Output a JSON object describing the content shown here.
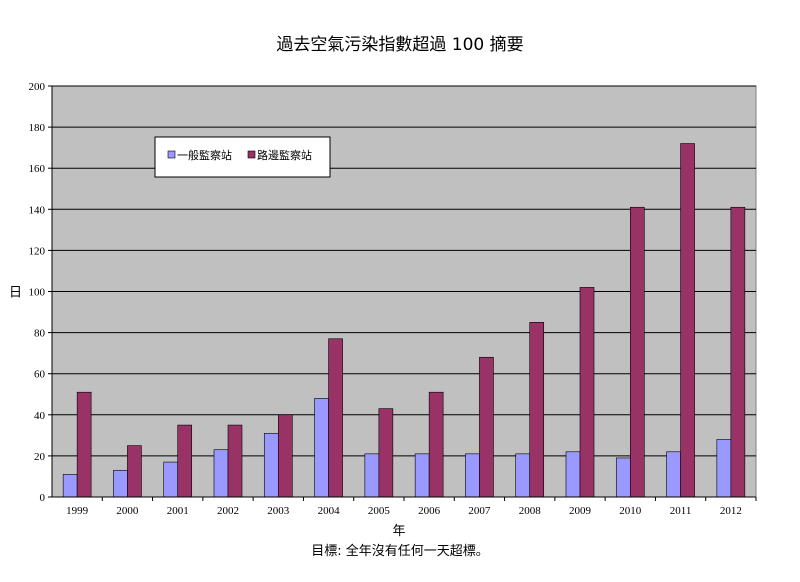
{
  "colors": {
    "plot_bg": "#c0c0c0",
    "general": "#9999ff",
    "roadside": "#993366"
  },
  "chart_data": {
    "type": "bar",
    "title": "過去空氣污染指數超過 100 摘要",
    "xlabel": "年",
    "ylabel": "日",
    "note": "目標: 全年沒有任何一天超標。",
    "ylim": [
      0,
      200
    ],
    "yticks": [
      0,
      20,
      40,
      60,
      80,
      100,
      120,
      140,
      160,
      180,
      200
    ],
    "grid": true,
    "legend_position": "top-left",
    "categories": [
      "1999",
      "2000",
      "2001",
      "2002",
      "2003",
      "2004",
      "2005",
      "2006",
      "2007",
      "2008",
      "2009",
      "2010",
      "2011",
      "2012"
    ],
    "series": [
      {
        "name": "一般監察站",
        "color": "#9999ff",
        "values": [
          11,
          13,
          17,
          23,
          31,
          48,
          21,
          21,
          21,
          21,
          22,
          19,
          22,
          28
        ]
      },
      {
        "name": "路邊監察站",
        "color": "#993366",
        "values": [
          51,
          25,
          35,
          35,
          40,
          77,
          43,
          51,
          68,
          85,
          102,
          141,
          172,
          141
        ]
      }
    ]
  }
}
